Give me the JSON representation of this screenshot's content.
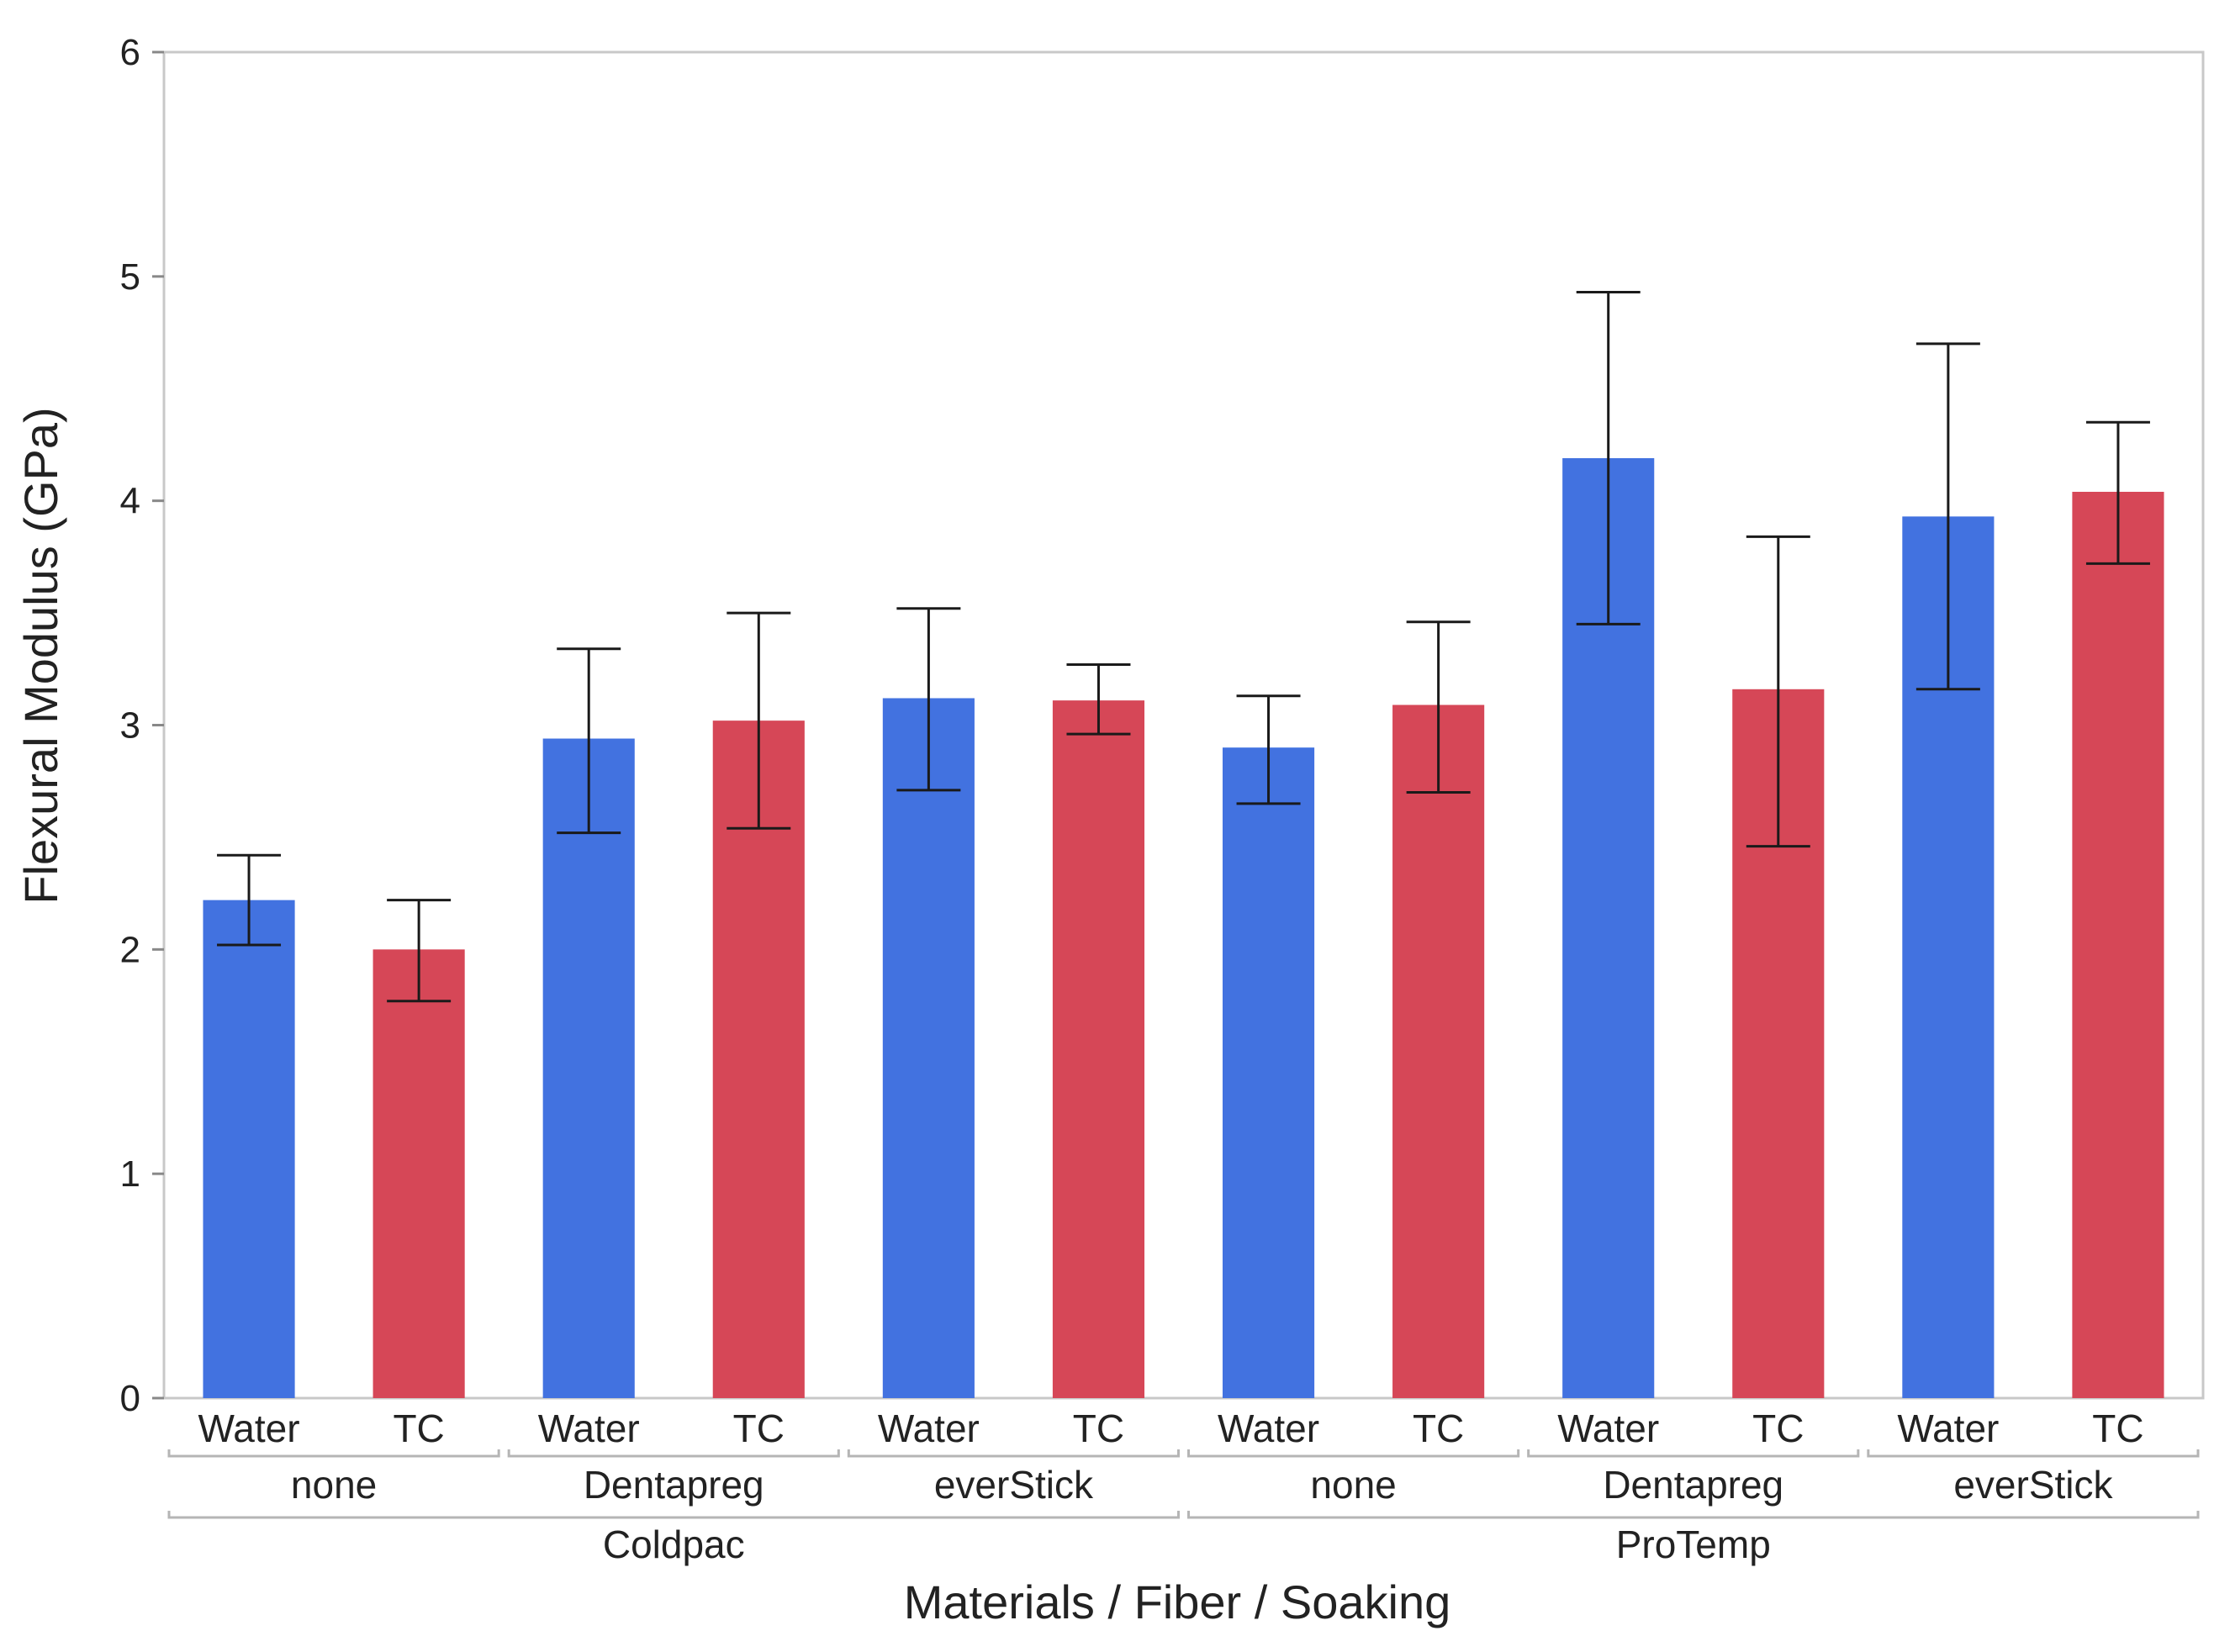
{
  "chart_data": {
    "type": "bar",
    "ylabel": "Flexural Modulus (GPa)",
    "xlabel": "Materials / Fiber / Soaking",
    "ylim": [
      0,
      6
    ],
    "y_ticks": [
      "0",
      "1",
      "2",
      "3",
      "4",
      "5",
      "6"
    ],
    "grid": false,
    "colors": {
      "Water": "#4272E0",
      "TC": "#D64757",
      "error_bar": "#1a1a1a",
      "frame": "#c8c8c8"
    },
    "groups": [
      {
        "material": "Coldpac",
        "fibers": [
          {
            "fiber": "none",
            "bars": [
              {
                "soaking": "Water",
                "value": 2.22,
                "err_low": 2.02,
                "err_high": 2.42
              },
              {
                "soaking": "TC",
                "value": 2.0,
                "err_low": 1.77,
                "err_high": 2.22
              }
            ]
          },
          {
            "fiber": "Dentapreg",
            "bars": [
              {
                "soaking": "Water",
                "value": 2.94,
                "err_low": 2.52,
                "err_high": 3.34
              },
              {
                "soaking": "TC",
                "value": 3.02,
                "err_low": 2.54,
                "err_high": 3.5
              }
            ]
          },
          {
            "fiber": "everStick",
            "bars": [
              {
                "soaking": "Water",
                "value": 3.12,
                "err_low": 2.71,
                "err_high": 3.52
              },
              {
                "soaking": "TC",
                "value": 3.11,
                "err_low": 2.96,
                "err_high": 3.27
              }
            ]
          }
        ]
      },
      {
        "material": "ProTemp",
        "fibers": [
          {
            "fiber": "none",
            "bars": [
              {
                "soaking": "Water",
                "value": 2.9,
                "err_low": 2.65,
                "err_high": 3.13
              },
              {
                "soaking": "TC",
                "value": 3.09,
                "err_low": 2.7,
                "err_high": 3.46
              }
            ]
          },
          {
            "fiber": "Dentapreg",
            "bars": [
              {
                "soaking": "Water",
                "value": 4.19,
                "err_low": 3.45,
                "err_high": 4.93
              },
              {
                "soaking": "TC",
                "value": 3.16,
                "err_low": 2.46,
                "err_high": 3.84
              }
            ]
          },
          {
            "fiber": "everStick",
            "bars": [
              {
                "soaking": "Water",
                "value": 3.93,
                "err_low": 3.16,
                "err_high": 4.7
              },
              {
                "soaking": "TC",
                "value": 4.04,
                "err_low": 3.72,
                "err_high": 4.35
              }
            ]
          }
        ]
      }
    ]
  }
}
